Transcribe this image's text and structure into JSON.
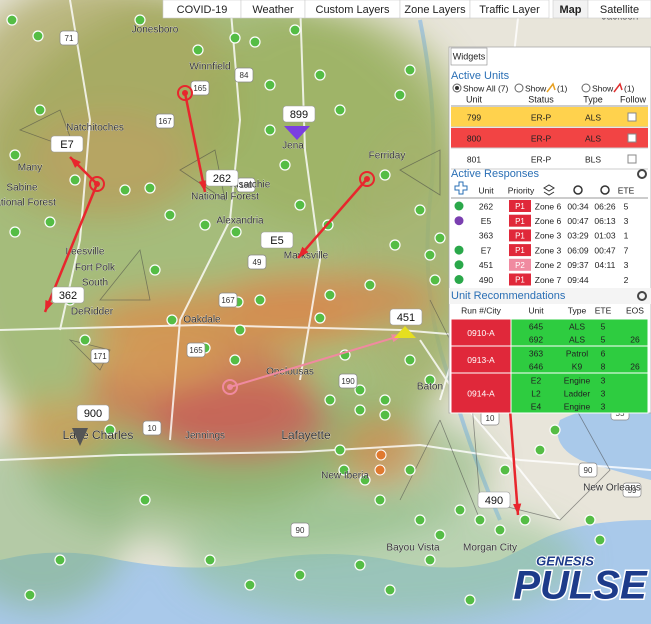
{
  "tabs": [
    "COVID-19",
    "Weather",
    "Custom Layers",
    "Zone Layers",
    "Traffic Layer",
    "Map",
    "Satellite"
  ],
  "map": {
    "places": [
      "Jonesboro",
      "Winnfield",
      "Natchitoches",
      "Jena",
      "Ferriday",
      "Kisatchie",
      "National Forest",
      "Sabine",
      "National Forest",
      "Many",
      "Alexandria",
      "Leesville",
      "Fort Polk",
      "South",
      "DeRidder",
      "Oakdale",
      "Marksville",
      "Opelousas",
      "Lake Charles",
      "Jennings",
      "Lafayette",
      "New Iberia",
      "Bayou Vista",
      "Morgan City",
      "Baton",
      "New Orleans",
      "Jackson"
    ],
    "highways": [
      "71",
      "84",
      "165",
      "167",
      "49",
      "165",
      "167",
      "190",
      "190",
      "171",
      "10",
      "55",
      "59",
      "90",
      "90",
      "10"
    ],
    "vehicles": [
      "899",
      "262",
      "E7",
      "E5",
      "362",
      "451",
      "900",
      "490"
    ]
  },
  "widgets": {
    "title": "Widgets",
    "active_units": {
      "title": "Active Units",
      "filters": [
        {
          "label": "Show All (7)"
        },
        {
          "label": "Show",
          "count": "(1)"
        },
        {
          "label": "Show",
          "count": "(1)"
        }
      ],
      "columns": [
        "Unit",
        "Status",
        "Type",
        "Follow"
      ],
      "rows": [
        [
          "799",
          "ER-P",
          "ALS"
        ],
        [
          "800",
          "ER-P",
          "ALS"
        ],
        [
          "801",
          "ER-P",
          "BLS"
        ]
      ]
    },
    "active_responses": {
      "title": "Active Responses",
      "columns": [
        "Unit",
        "Priority",
        "ETE"
      ],
      "rows": [
        {
          "unit": "262",
          "priority": "P1",
          "zone": "Zone 6",
          "elapsed": "00:34",
          "remaining": "06:26",
          "ete": "5"
        },
        {
          "unit": "E5",
          "priority": "P1",
          "zone": "Zone 6",
          "elapsed": "00:47",
          "remaining": "06:13",
          "ete": "3"
        },
        {
          "unit": "363",
          "priority": "P1",
          "zone": "Zone 3",
          "elapsed": "03:29",
          "remaining": "01:03",
          "ete": "1"
        },
        {
          "unit": "E7",
          "priority": "P1",
          "zone": "Zone 3",
          "elapsed": "06:09",
          "remaining": "00:47",
          "ete": "7"
        },
        {
          "unit": "451",
          "priority": "P2",
          "zone": "Zone 2",
          "elapsed": "09:37",
          "remaining": "04:11",
          "ete": "3"
        },
        {
          "unit": "490",
          "priority": "P1",
          "zone": "Zone 7",
          "elapsed": "09:44",
          "ete": "2"
        }
      ]
    },
    "unit_recommendations": {
      "title": "Unit Recommendations",
      "columns": [
        "Run #/City",
        "Unit",
        "Type",
        "ETE",
        "EOS"
      ],
      "groups": [
        {
          "run": "0910-A",
          "units": [
            [
              "645",
              "ALS",
              "5"
            ],
            [
              "692",
              "ALS",
              "5"
            ]
          ],
          "eos": "26"
        },
        {
          "run": "0913-A",
          "units": [
            [
              "363",
              "Patrol",
              "6"
            ],
            [
              "646",
              "K9",
              "8"
            ]
          ],
          "eos": "26"
        },
        {
          "run": "0914-A",
          "units": [
            [
              "E2",
              "Engine",
              "3"
            ],
            [
              "L2",
              "Ladder",
              "3"
            ],
            [
              "E4",
              "Engine",
              "3"
            ]
          ]
        }
      ]
    }
  },
  "logo": {
    "line1": "GENESIS",
    "line2": "PULSE"
  }
}
